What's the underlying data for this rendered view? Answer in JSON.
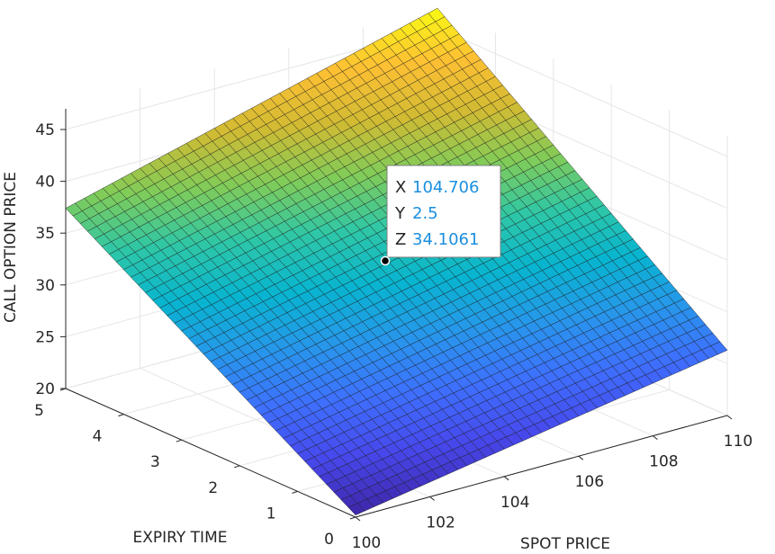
{
  "chart_data": {
    "type": "surface",
    "title": "",
    "xlabel": "SPOT PRICE",
    "ylabel": "EXPIRY TIME",
    "zlabel": "CALL OPTION PRICE",
    "xlim": [
      100,
      110
    ],
    "ylim": [
      0,
      5
    ],
    "zlim": [
      20,
      47
    ],
    "x_ticks": [
      "100",
      "102",
      "104",
      "106",
      "108",
      "110"
    ],
    "y_ticks": [
      "0",
      "1",
      "2",
      "3",
      "4",
      "5"
    ],
    "z_ticks": [
      "20",
      "25",
      "30",
      "35",
      "40",
      "45"
    ],
    "grid": true,
    "colormap": "parula",
    "corner_values": {
      "x100_y0": 20.2,
      "x110_y0": 26.3,
      "x100_y5": 37.4,
      "x110_y5": 46.9
    },
    "datatip": {
      "x_key": "X",
      "x_value": "104.706",
      "y_key": "Y",
      "y_value": "2.5",
      "z_key": "Z",
      "z_value": "34.1061"
    }
  }
}
